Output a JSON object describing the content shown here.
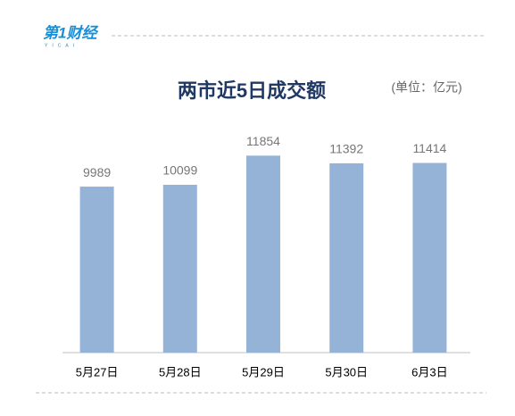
{
  "logo": {
    "text": "第1财经",
    "subtext": "YICAI"
  },
  "chart_data": {
    "type": "bar",
    "title": "两市近5日成交额",
    "subtitle": "(单位：亿元)",
    "categories": [
      "5月27日",
      "5月28日",
      "5月29日",
      "5月30日",
      "6月3日"
    ],
    "values": [
      9989,
      10099,
      11854,
      11392,
      11414
    ],
    "color": "#95b3d7",
    "ylim": [
      0,
      13000
    ]
  }
}
